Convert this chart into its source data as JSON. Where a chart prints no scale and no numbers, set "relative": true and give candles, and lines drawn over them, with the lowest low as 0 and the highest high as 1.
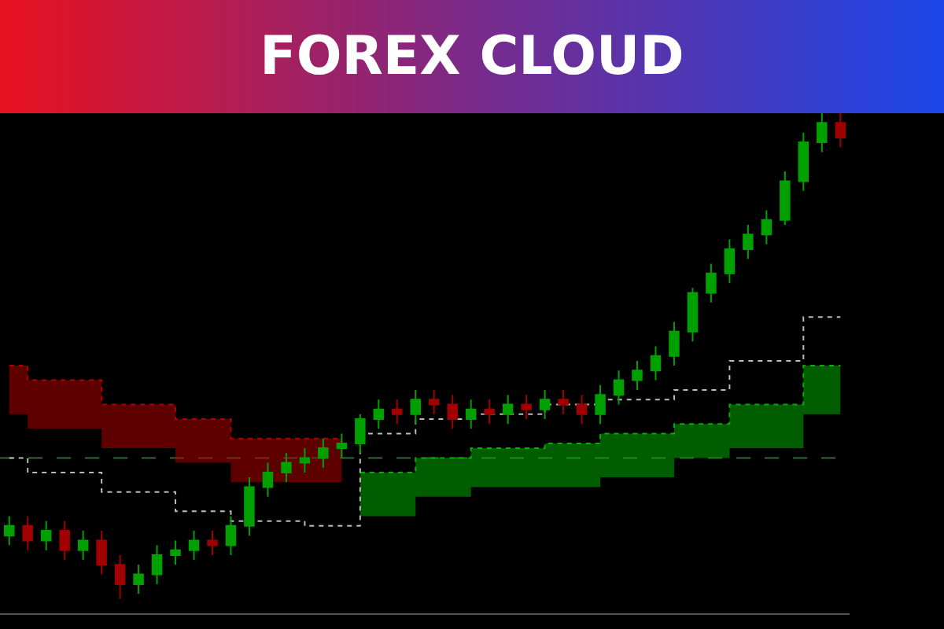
{
  "chart_data": {
    "type": "candlestick",
    "title": "FOREX CLOUD",
    "relative": true,
    "grid": false,
    "tick_labels": false,
    "categories": [
      null,
      null,
      null,
      null,
      null,
      null,
      null,
      null,
      null,
      null,
      null,
      null,
      null,
      null,
      null,
      null,
      null,
      null,
      null,
      null,
      null,
      null,
      null,
      null,
      null,
      null,
      null,
      null,
      null,
      null,
      null,
      null,
      null,
      null,
      null,
      null,
      null,
      null,
      null,
      null,
      null,
      null,
      null,
      null,
      null,
      null
    ],
    "ohlc": [
      [
        0.13,
        0.17,
        0.11,
        0.15
      ],
      [
        0.15,
        0.17,
        0.1,
        0.12
      ],
      [
        0.12,
        0.16,
        0.1,
        0.14
      ],
      [
        0.14,
        0.16,
        0.08,
        0.1
      ],
      [
        0.1,
        0.14,
        0.08,
        0.12
      ],
      [
        0.12,
        0.14,
        0.05,
        0.07
      ],
      [
        0.07,
        0.09,
        0,
        0.03
      ],
      [
        0.03,
        0.07,
        0.01,
        0.05
      ],
      [
        0.05,
        0.11,
        0.03,
        0.09
      ],
      [
        0.09,
        0.12,
        0.07,
        0.1
      ],
      [
        0.1,
        0.14,
        0.08,
        0.12
      ],
      [
        0.12,
        0.14,
        0.09,
        0.11
      ],
      [
        0.11,
        0.17,
        0.09,
        0.15
      ],
      [
        0.15,
        0.25,
        0.13,
        0.23
      ],
      [
        0.23,
        0.28,
        0.21,
        0.26
      ],
      [
        0.26,
        0.3,
        0.24,
        0.28
      ],
      [
        0.28,
        0.31,
        0.26,
        0.29
      ],
      [
        0.29,
        0.33,
        0.27,
        0.31
      ],
      [
        0.31,
        0.34,
        0.29,
        0.32
      ],
      [
        0.32,
        0.38,
        0.3,
        0.37
      ],
      [
        0.37,
        0.41,
        0.35,
        0.39
      ],
      [
        0.39,
        0.41,
        0.36,
        0.38
      ],
      [
        0.38,
        0.43,
        0.36,
        0.41
      ],
      [
        0.41,
        0.43,
        0.38,
        0.4
      ],
      [
        0.4,
        0.42,
        0.35,
        0.37
      ],
      [
        0.37,
        0.41,
        0.35,
        0.39
      ],
      [
        0.39,
        0.41,
        0.36,
        0.38
      ],
      [
        0.38,
        0.42,
        0.36,
        0.4
      ],
      [
        0.4,
        0.42,
        0.37,
        0.39
      ],
      [
        0.39,
        0.43,
        0.37,
        0.41
      ],
      [
        0.41,
        0.43,
        0.38,
        0.4
      ],
      [
        0.4,
        0.42,
        0.36,
        0.38
      ],
      [
        0.38,
        0.44,
        0.36,
        0.42
      ],
      [
        0.42,
        0.47,
        0.4,
        0.45
      ],
      [
        0.45,
        0.49,
        0.43,
        0.47
      ],
      [
        0.47,
        0.52,
        0.45,
        0.5
      ],
      [
        0.5,
        0.57,
        0.48,
        0.55
      ],
      [
        0.55,
        0.64,
        0.53,
        0.63
      ],
      [
        0.63,
        0.69,
        0.61,
        0.67
      ],
      [
        0.67,
        0.74,
        0.65,
        0.72
      ],
      [
        0.72,
        0.77,
        0.7,
        0.75
      ],
      [
        0.75,
        0.8,
        0.73,
        0.78
      ],
      [
        0.78,
        0.88,
        0.77,
        0.86
      ],
      [
        0.86,
        0.96,
        0.84,
        0.94
      ],
      [
        0.94,
        1,
        0.92,
        0.98
      ],
      [
        0.98,
        1,
        0.93,
        0.95
      ]
    ],
    "series": [
      {
        "type": "step",
        "color": "#b00000",
        "line_style": "dotted",
        "values": [
          0.48,
          0.45,
          0.45,
          0.45,
          0.45,
          0.4,
          0.4,
          0.4,
          0.4,
          0.37,
          0.37,
          0.37,
          0.33,
          0.33,
          0.33,
          0.33,
          0.33,
          0.33,
          0.33,
          null,
          null,
          null,
          null,
          null,
          null,
          null,
          null,
          null,
          null,
          null,
          null,
          null,
          null,
          null,
          null,
          null,
          null,
          null,
          null,
          null,
          null,
          null,
          null,
          null,
          null,
          null
        ],
        "lower": [
          0.38,
          0.35,
          0.35,
          0.35,
          0.35,
          0.31,
          0.31,
          0.31,
          0.31,
          0.28,
          0.28,
          0.28,
          0.24,
          0.24,
          0.24,
          0.24,
          0.24,
          0.24,
          0.24,
          null,
          null,
          null,
          null,
          null,
          null,
          null,
          null,
          null,
          null,
          null,
          null,
          null,
          null,
          null,
          null,
          null,
          null,
          null,
          null,
          null,
          null,
          null,
          null,
          null,
          null,
          null
        ],
        "upper": [
          0.48,
          0.45,
          0.45,
          0.45,
          0.45,
          0.4,
          0.4,
          0.4,
          0.4,
          0.37,
          0.37,
          0.37,
          0.33,
          0.33,
          0.33,
          0.33,
          0.33,
          0.33,
          0.33,
          null,
          null,
          null,
          null,
          null,
          null,
          null,
          null,
          null,
          null,
          null,
          null,
          null,
          null,
          null,
          null,
          null,
          null,
          null,
          null,
          null,
          null,
          null,
          null,
          null,
          null,
          null
        ]
      },
      {
        "type": "step",
        "color": "#00b000",
        "line_style": "dotted",
        "values": [
          null,
          null,
          null,
          null,
          null,
          null,
          null,
          null,
          null,
          null,
          null,
          null,
          null,
          null,
          null,
          null,
          null,
          null,
          null,
          0.26,
          0.26,
          0.26,
          0.29,
          0.29,
          0.29,
          0.31,
          0.31,
          0.31,
          0.31,
          0.32,
          0.32,
          0.32,
          0.34,
          0.34,
          0.34,
          0.34,
          0.36,
          0.36,
          0.36,
          0.4,
          0.4,
          0.4,
          0.4,
          0.48,
          0.48,
          0.48
        ],
        "lower": [
          null,
          null,
          null,
          null,
          null,
          null,
          null,
          null,
          null,
          null,
          null,
          null,
          null,
          null,
          null,
          null,
          null,
          null,
          null,
          0.17,
          0.17,
          0.17,
          0.21,
          0.21,
          0.21,
          0.23,
          0.23,
          0.23,
          0.23,
          0.23,
          0.23,
          0.23,
          0.25,
          0.25,
          0.25,
          0.25,
          0.29,
          0.29,
          0.29,
          0.31,
          0.31,
          0.31,
          0.31,
          0.38,
          0.38,
          0.38
        ],
        "upper": [
          null,
          null,
          null,
          null,
          null,
          null,
          null,
          null,
          null,
          null,
          null,
          null,
          null,
          null,
          null,
          null,
          null,
          null,
          null,
          0.26,
          0.26,
          0.26,
          0.29,
          0.29,
          0.29,
          0.31,
          0.31,
          0.31,
          0.31,
          0.32,
          0.32,
          0.32,
          0.34,
          0.34,
          0.34,
          0.34,
          0.36,
          0.36,
          0.36,
          0.4,
          0.4,
          0.4,
          0.4,
          0.48,
          0.48,
          0.48
        ]
      },
      {
        "type": "step",
        "color": "#bbbbbb",
        "line_style": "dotted",
        "values": [
          0.29,
          0.26,
          0.26,
          0.26,
          0.26,
          0.22,
          0.22,
          0.22,
          0.22,
          0.18,
          0.18,
          0.18,
          0.16,
          0.16,
          0.16,
          0.16,
          0.15,
          0.15,
          0.15,
          0.34,
          0.34,
          0.34,
          0.37,
          0.37,
          0.37,
          0.38,
          0.38,
          0.38,
          0.38,
          0.4,
          0.4,
          0.4,
          0.41,
          0.41,
          0.41,
          0.41,
          0.43,
          0.43,
          0.43,
          0.49,
          0.49,
          0.49,
          0.49,
          0.58,
          0.58,
          0.58
        ]
      }
    ],
    "ref_lines": [
      {
        "axis": "y",
        "value": 0.29,
        "color": "#2e6b2e",
        "line_style": "dashed"
      }
    ]
  }
}
